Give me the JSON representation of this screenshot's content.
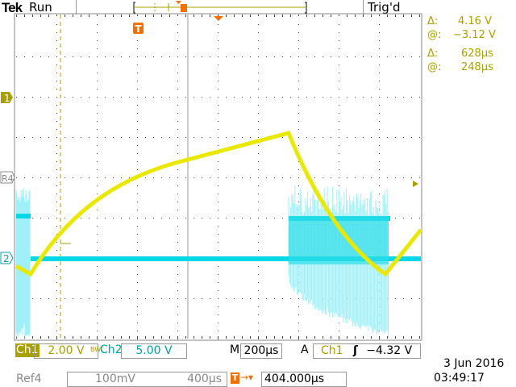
{
  "header": {
    "brand": "Tek",
    "state": "Run",
    "trigger_status": "Trig'd"
  },
  "cursor_readout": {
    "v_delta_label": "Δ:",
    "v_delta": "4.16 V",
    "v_at_label": "@:",
    "v_at": "−3.12 V",
    "t_delta_label": "Δ:",
    "t_delta": "628µs",
    "t_at_label": "@:",
    "t_at": "248µs"
  },
  "markers": {
    "ch1": "1",
    "ch2": "2",
    "ref4": "R4",
    "trigger": "T"
  },
  "status": {
    "ch1_label": "Ch1",
    "ch1_scale": "2.00 V",
    "bw_label": "BW",
    "ch2_label": "Ch2",
    "ch2_scale": "5.00 V",
    "timebase_label": "M",
    "timebase": "200µs",
    "trigger_mode": "A",
    "trigger_source": "Ch1",
    "trigger_slope": "rising",
    "trigger_level": "−4.32 V",
    "ref4_label": "Ref4",
    "ref4_scale": "100mV",
    "ref4_time": "400µs",
    "trigger_pos": "404.000µs",
    "date": "3 Jun  2016",
    "time": "03:49:17"
  },
  "colors": {
    "ch1": "#e8e800",
    "ch2": "#00d8e8",
    "trigger": "#f07000"
  }
}
